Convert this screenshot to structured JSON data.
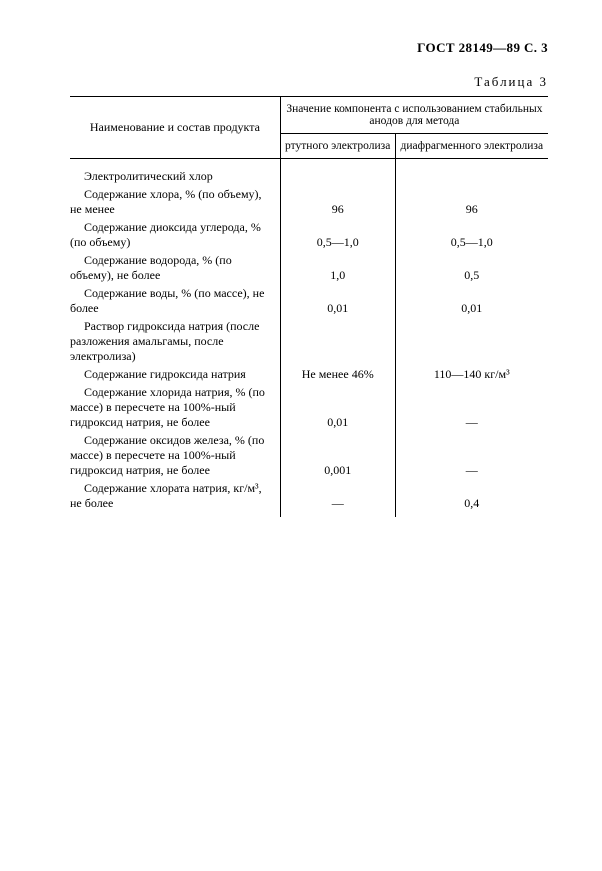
{
  "header": "ГОСТ 28149—89 С. 3",
  "table_caption": "Таблица 3",
  "colors": {
    "text": "#000000",
    "background": "#ffffff",
    "border": "#000000"
  },
  "typography": {
    "base_font_family": "Times New Roman, serif",
    "body_fontsize_pt": 9.5,
    "header_fontsize_pt": 10,
    "header_fontweight": "bold"
  },
  "table": {
    "type": "table",
    "columns": {
      "name_header": "Наименование и состав продукта",
      "group_header": "Значение компонента с использованием стабильных анодов для метода",
      "sub1": "ртутного электролиза",
      "sub2": "диафрагменного электролиза"
    },
    "rows": [
      {
        "name": "Электролитический хлор",
        "v1": "",
        "v2": ""
      },
      {
        "name": "Содержание хлора, % (по объему), не менее",
        "v1": "96",
        "v2": "96"
      },
      {
        "name": "Содержание диоксида углерода, % (по объему)",
        "v1": "0,5—1,0",
        "v2": "0,5—1,0"
      },
      {
        "name": "Содержание водорода, % (по объему), не более",
        "v1": "1,0",
        "v2": "0,5"
      },
      {
        "name": "Содержание воды, % (по массе), не более",
        "v1": "0,01",
        "v2": "0,01"
      },
      {
        "name": "Раствор гидроксида натрия (после разложения амальгамы, после электролиза)",
        "v1": "",
        "v2": ""
      },
      {
        "name": "Содержание гидроксида натрия",
        "v1": "Не менее 46%",
        "v2": "110—140 кг/м³"
      },
      {
        "name": "Содержание хлорида натрия, % (по массе) в пересчете на 100%-ный гидроксид натрия, не более",
        "v1": "0,01",
        "v2": "—"
      },
      {
        "name": "Содержание оксидов железа, % (по массе) в пересчете на 100%-ный гидроксид натрия, не более",
        "v1": "0,001",
        "v2": "—"
      },
      {
        "name": "Содержание хлората натрия, кг/м³, не более",
        "v1": "—",
        "v2": "0,4"
      }
    ]
  }
}
